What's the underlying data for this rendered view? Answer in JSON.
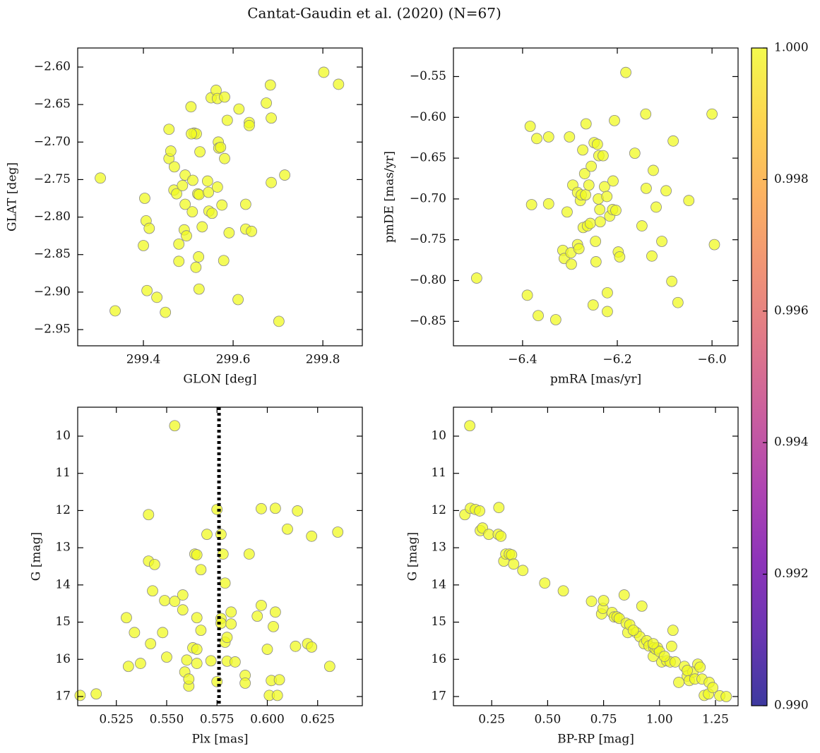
{
  "title": "Cantat-Gaudin et al. (2020) (N=67)",
  "chart_data": [
    {
      "type": "scatter",
      "xlabel": "GLON [deg]",
      "ylabel": "GLAT [deg]",
      "color": "#f0f921",
      "x": [
        299.304,
        299.337,
        299.4,
        299.403,
        299.406,
        299.408,
        299.413,
        299.43,
        299.449,
        299.457,
        299.457,
        299.461,
        299.469,
        299.468,
        299.474,
        299.479,
        299.479,
        299.487,
        299.491,
        299.493,
        299.493,
        299.496,
        299.506,
        299.509,
        299.51,
        299.513,
        299.518,
        299.521,
        299.524,
        299.523,
        299.524,
        299.526,
        299.531,
        299.543,
        299.545,
        299.546,
        299.551,
        299.553,
        299.562,
        299.565,
        299.565,
        299.567,
        299.568,
        299.572,
        299.575,
        299.579,
        299.581,
        299.581,
        299.587,
        299.591,
        299.611,
        299.613,
        299.628,
        299.628,
        299.636,
        299.636,
        299.641,
        299.674,
        299.683,
        299.685,
        299.685,
        299.702,
        299.715,
        299.802,
        299.835,
        299.507,
        299.517
      ],
      "y": [
        -2.748,
        -2.925,
        -2.838,
        -2.775,
        -2.805,
        -2.898,
        -2.815,
        -2.907,
        -2.927,
        -2.683,
        -2.722,
        -2.712,
        -2.733,
        -2.764,
        -2.769,
        -2.836,
        -2.859,
        -2.758,
        -2.817,
        -2.744,
        -2.783,
        -2.825,
        -2.653,
        -2.793,
        -2.751,
        -2.688,
        -2.689,
        -2.769,
        -2.896,
        -2.853,
        -2.77,
        -2.713,
        -2.813,
        -2.752,
        -2.767,
        -2.792,
        -2.641,
        -2.795,
        -2.631,
        -2.642,
        -2.76,
        -2.7,
        -2.708,
        -2.707,
        -2.784,
        -2.858,
        -2.64,
        -2.722,
        -2.671,
        -2.821,
        -2.91,
        -2.656,
        -2.783,
        -2.816,
        -2.674,
        -2.678,
        -2.819,
        -2.648,
        -2.624,
        -2.754,
        -2.668,
        -2.939,
        -2.744,
        -2.607,
        -2.623,
        -2.689,
        -2.867
      ],
      "xlim": [
        299.2535,
        299.888
      ],
      "ylim": [
        -2.9716,
        -2.5746
      ],
      "xticks": [
        299.4,
        299.6,
        299.8
      ],
      "yticks": [
        {
          "value": -2.6,
          "label": "−2.60"
        },
        {
          "value": -2.65,
          "label": "−2.65"
        },
        {
          "value": -2.7,
          "label": "−2.70"
        },
        {
          "value": -2.75,
          "label": "−2.75"
        },
        {
          "value": -2.8,
          "label": "−2.80"
        },
        {
          "value": -2.85,
          "label": "−2.85"
        },
        {
          "value": -2.9,
          "label": "−2.90"
        },
        {
          "value": -2.95,
          "label": "−2.95"
        }
      ]
    },
    {
      "type": "scatter",
      "xlabel": "pmRA [mas/yr]",
      "ylabel": "pmDE [mas/yr]",
      "color": "#f0f921",
      "x": [
        -6.497,
        -6.39,
        -6.384,
        -6.381,
        -6.367,
        -6.37,
        -6.345,
        -6.345,
        -6.33,
        -6.315,
        -6.312,
        -6.306,
        -6.301,
        -6.297,
        -6.298,
        -6.294,
        -6.284,
        -6.284,
        -6.281,
        -6.278,
        -6.276,
        -6.273,
        -6.272,
        -6.269,
        -6.267,
        -6.266,
        -6.263,
        -6.26,
        -6.257,
        -6.255,
        -6.251,
        -6.249,
        -6.246,
        -6.245,
        -6.242,
        -6.24,
        -6.239,
        -6.237,
        -6.236,
        -6.23,
        -6.227,
        -6.222,
        -6.221,
        -6.221,
        -6.216,
        -6.21,
        -6.209,
        -6.206,
        -6.203,
        -6.198,
        -6.195,
        -6.182,
        -6.163,
        -6.148,
        -6.14,
        -6.139,
        -6.127,
        -6.124,
        -6.118,
        -6.106,
        -6.097,
        -6.085,
        -6.082,
        -6.072,
        -6.049,
        -6.0,
        -5.995
      ],
      "y": [
        -0.797,
        -0.818,
        -0.611,
        -0.707,
        -0.843,
        -0.626,
        -0.706,
        -0.624,
        -0.848,
        -0.763,
        -0.773,
        -0.716,
        -0.624,
        -0.78,
        -0.766,
        -0.683,
        -0.756,
        -0.692,
        -0.761,
        -0.702,
        -0.695,
        -0.64,
        -0.735,
        -0.669,
        -0.695,
        -0.608,
        -0.733,
        -0.683,
        -0.73,
        -0.66,
        -0.83,
        -0.631,
        -0.752,
        -0.777,
        -0.633,
        -0.7,
        -0.647,
        -0.713,
        -0.728,
        -0.647,
        -0.685,
        -0.697,
        -0.815,
        -0.838,
        -0.721,
        -0.713,
        -0.678,
        -0.604,
        -0.714,
        -0.765,
        -0.771,
        -0.545,
        -0.644,
        -0.733,
        -0.596,
        -0.687,
        -0.77,
        -0.665,
        -0.71,
        -0.752,
        -0.69,
        -0.801,
        -0.629,
        -0.827,
        -0.702,
        -0.596,
        -0.756
      ],
      "xlim": [
        -6.546,
        -5.945
      ],
      "ylim": [
        -0.88,
        -0.515
      ],
      "xticks": [
        {
          "value": -6.4,
          "label": "−6.4"
        },
        {
          "value": -6.2,
          "label": "−6.2"
        },
        {
          "value": -6.0,
          "label": "−6.0"
        }
      ],
      "yticks": [
        {
          "value": -0.55,
          "label": "−0.55"
        },
        {
          "value": -0.6,
          "label": "−0.60"
        },
        {
          "value": -0.65,
          "label": "−0.65"
        },
        {
          "value": -0.7,
          "label": "−0.70"
        },
        {
          "value": -0.75,
          "label": "−0.75"
        },
        {
          "value": -0.8,
          "label": "−0.80"
        },
        {
          "value": -0.85,
          "label": "−0.85"
        }
      ]
    },
    {
      "type": "scatter",
      "xlabel": "Plx [mas]",
      "ylabel": "G [mag]",
      "color": "#f0f921",
      "vline": 0.576,
      "x": [
        0.507,
        0.515,
        0.53,
        0.531,
        0.534,
        0.537,
        0.541,
        0.541,
        0.542,
        0.543,
        0.544,
        0.548,
        0.549,
        0.55,
        0.554,
        0.554,
        0.558,
        0.558,
        0.559,
        0.56,
        0.561,
        0.561,
        0.563,
        0.564,
        0.565,
        0.565,
        0.565,
        0.565,
        0.567,
        0.567,
        0.57,
        0.572,
        0.575,
        0.575,
        0.577,
        0.577,
        0.577,
        0.578,
        0.579,
        0.579,
        0.58,
        0.58,
        0.582,
        0.582,
        0.584,
        0.589,
        0.589,
        0.591,
        0.595,
        0.597,
        0.597,
        0.6,
        0.601,
        0.602,
        0.603,
        0.604,
        0.604,
        0.605,
        0.606,
        0.61,
        0.614,
        0.615,
        0.62,
        0.622,
        0.631,
        0.635,
        0.622
      ],
      "y": [
        16.97,
        16.93,
        14.88,
        16.19,
        15.28,
        16.11,
        12.11,
        13.36,
        15.58,
        14.16,
        13.45,
        15.28,
        14.42,
        15.94,
        14.44,
        9.72,
        14.67,
        14.27,
        16.34,
        16.02,
        16.72,
        16.53,
        15.69,
        13.17,
        13.19,
        14.88,
        15.73,
        16.11,
        15.22,
        13.59,
        12.64,
        16.04,
        11.97,
        16.6,
        14.9,
        15.03,
        12.64,
        13.17,
        13.95,
        15.54,
        15.41,
        16.05,
        14.73,
        15.05,
        16.07,
        16.43,
        16.64,
        13.17,
        14.84,
        14.55,
        11.95,
        15.73,
        16.97,
        16.57,
        15.12,
        14.73,
        11.94,
        16.97,
        16.55,
        12.5,
        15.65,
        12.01,
        15.58,
        15.67,
        16.19,
        12.58,
        12.69
      ],
      "xlim": [
        0.5058,
        0.6472
      ],
      "ylim": [
        17.247,
        9.222
      ],
      "xticks": [
        0.525,
        {
          "value": 0.55,
          "label": "0.550"
        },
        0.575,
        {
          "value": 0.6,
          "label": "0.600"
        },
        0.625
      ],
      "yticks": [
        10,
        11,
        12,
        13,
        14,
        15,
        16,
        17
      ]
    },
    {
      "type": "scatter",
      "xlabel": "BP-RP [mag]",
      "ylabel": "G [mag]",
      "color": "#f0f921",
      "x": [
        0.13,
        0.152,
        0.155,
        0.177,
        0.196,
        0.199,
        0.209,
        0.237,
        0.279,
        0.282,
        0.291,
        0.304,
        0.313,
        0.329,
        0.339,
        0.348,
        0.389,
        0.487,
        0.57,
        0.696,
        0.741,
        0.747,
        0.75,
        0.788,
        0.798,
        0.81,
        0.82,
        0.842,
        0.851,
        0.858,
        0.867,
        0.896,
        0.912,
        0.921,
        0.931,
        0.943,
        0.953,
        0.972,
        0.975,
        0.984,
        0.991,
        1.0,
        1.01,
        1.032,
        1.048,
        1.054,
        1.06,
        1.07,
        1.086,
        1.111,
        1.124,
        1.133,
        1.149,
        1.158,
        1.171,
        1.181,
        1.19,
        1.2,
        1.219,
        1.222,
        1.238,
        1.269,
        1.298,
        0.883,
        0.972,
        1.124,
        1.022
      ],
      "y": [
        12.11,
        9.72,
        11.94,
        11.97,
        12.01,
        12.54,
        12.47,
        12.64,
        12.64,
        11.92,
        12.69,
        13.36,
        13.17,
        13.17,
        13.19,
        13.44,
        13.61,
        13.95,
        14.16,
        14.44,
        14.78,
        14.63,
        14.42,
        14.74,
        14.86,
        14.86,
        14.9,
        14.27,
        15.03,
        15.28,
        15.07,
        15.28,
        15.39,
        14.57,
        15.58,
        15.5,
        15.64,
        15.92,
        15.69,
        15.73,
        15.69,
        15.79,
        16.07,
        16.04,
        16.07,
        15.65,
        15.22,
        16.07,
        16.62,
        16.19,
        16.45,
        16.57,
        16.34,
        16.53,
        16.13,
        16.21,
        16.53,
        16.97,
        16.93,
        16.62,
        16.76,
        16.98,
        17.0,
        15.22,
        15.58,
        16.3,
        15.92
      ],
      "xlim": [
        0.079,
        1.351
      ],
      "ylim": [
        17.247,
        9.222
      ],
      "xticks": [
        0.25,
        {
          "value": 0.5,
          "label": "0.50"
        },
        0.75,
        {
          "value": 1,
          "label": "1.00"
        },
        1.25
      ],
      "yticks": [
        10,
        11,
        12,
        13,
        14,
        15,
        16,
        17
      ]
    }
  ],
  "colorbar": {
    "clim": [
      0.99,
      1.0
    ],
    "colors": [
      "#0d0887",
      "#46039f",
      "#7201a8",
      "#9c179e",
      "#bd3786",
      "#d8576b",
      "#ed7953",
      "#fb9f3a",
      "#fdca26",
      "#f0f921"
    ],
    "ticks": [
      {
        "value": 0.99,
        "label": "0.990"
      },
      0.992,
      0.994,
      0.996,
      0.998,
      {
        "value": 1,
        "label": "1.000"
      }
    ]
  }
}
